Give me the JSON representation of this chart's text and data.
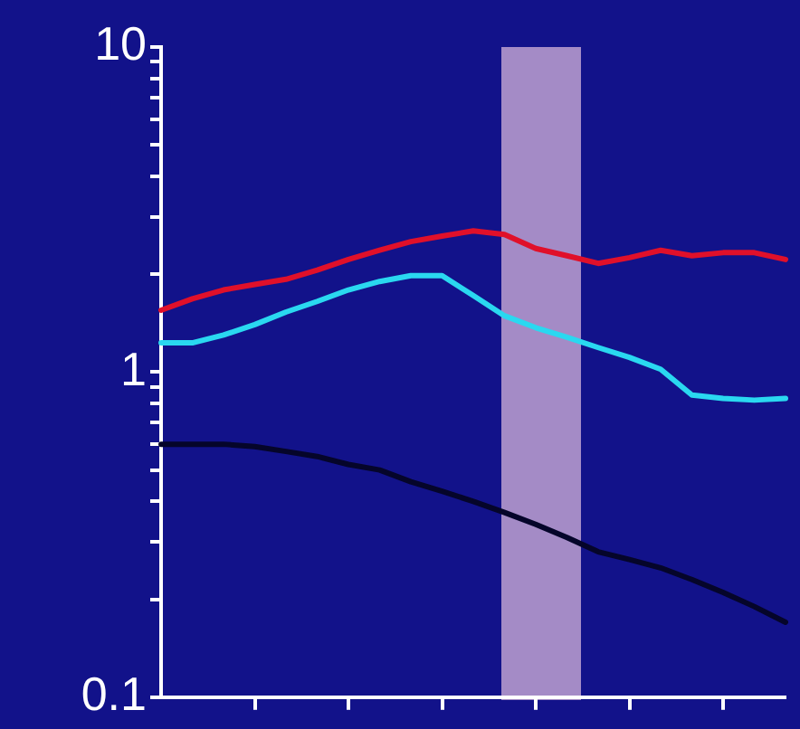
{
  "chart_data": {
    "type": "line",
    "log": "y",
    "grid": false,
    "legend": false,
    "marker": "none",
    "line_style": "solid",
    "tick_labels": "y",
    "categories": [
      null,
      null,
      null,
      null,
      null,
      null,
      null,
      null,
      null,
      null,
      null,
      null,
      null,
      null,
      null,
      null,
      null,
      null,
      null,
      null,
      null
    ],
    "ylim": [
      0.1,
      10
    ],
    "yticks": [
      0.1,
      {
        "value": 0.2,
        "label": null
      },
      {
        "value": 0.3,
        "label": null
      },
      {
        "value": 0.4,
        "label": null
      },
      {
        "value": 0.5,
        "label": null
      },
      {
        "value": 0.6,
        "label": null
      },
      {
        "value": 0.7,
        "label": null
      },
      {
        "value": 0.8,
        "label": null
      },
      {
        "value": 0.9,
        "label": null
      },
      1,
      {
        "value": 2,
        "label": null
      },
      {
        "value": 3,
        "label": null
      },
      {
        "value": 4,
        "label": null
      },
      {
        "value": 5,
        "label": null
      },
      {
        "value": 6,
        "label": null
      },
      {
        "value": 7,
        "label": null
      },
      {
        "value": 8,
        "label": null
      },
      {
        "value": 9,
        "label": null
      },
      10
    ],
    "series": [
      {
        "color": "#e0102a",
        "values": [
          1.55,
          1.68,
          1.79,
          1.86,
          1.93,
          2.06,
          2.22,
          2.37,
          2.52,
          2.62,
          2.72,
          2.65,
          2.4,
          2.28,
          2.16,
          2.25,
          2.37,
          2.28,
          2.33,
          2.33,
          2.22
        ]
      },
      {
        "color": "#2ad8f0",
        "values": [
          1.23,
          1.23,
          1.3,
          1.4,
          1.53,
          1.65,
          1.79,
          1.9,
          1.98,
          1.98,
          1.72,
          1.49,
          1.37,
          1.28,
          1.19,
          1.11,
          1.02,
          0.85,
          0.83,
          0.82,
          0.83
        ]
      },
      {
        "color": "#05052a",
        "values": [
          0.6,
          0.6,
          0.6,
          0.59,
          0.57,
          0.55,
          0.52,
          0.5,
          0.46,
          0.43,
          0.4,
          0.37,
          0.34,
          0.31,
          0.28,
          0.265,
          0.25,
          0.23,
          0.21,
          0.19,
          0.17
        ]
      }
    ]
  }
}
